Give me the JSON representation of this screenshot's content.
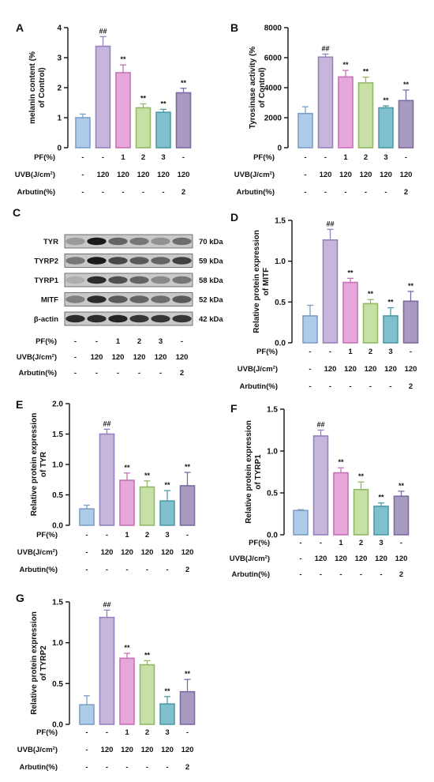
{
  "conditions": {
    "pf": [
      "-",
      "-",
      "1",
      "2",
      "3",
      "-"
    ],
    "uvb": [
      "-",
      "120",
      "120",
      "120",
      "120",
      "120"
    ],
    "arbutin": [
      "-",
      "-",
      "-",
      "-",
      "-",
      "2"
    ]
  },
  "row_labels": {
    "pf": "PF(%)",
    "uvb": "UVB(J/cm²)",
    "arbutin": "Arbutin(%)"
  },
  "bar_colors": [
    "#aecbe8",
    "#c6b6dc",
    "#e6a8d8",
    "#c7e0a6",
    "#7fc0cc",
    "#a99ac2"
  ],
  "bar_stroke_colors": [
    "#7c9fc6",
    "#9583bd",
    "#c673b8",
    "#93b86a",
    "#4f9aa8",
    "#7c6ba0"
  ],
  "western_blot": {
    "letter": "C",
    "bands": [
      {
        "protein": "TYR",
        "size": "70 kDa"
      },
      {
        "protein": "TYRP2",
        "size": "59 kDa"
      },
      {
        "protein": "TYRP1",
        "size": "58 kDa"
      },
      {
        "protein": "MITF",
        "size": "52 kDa"
      },
      {
        "protein": "β-actin",
        "size": "42 kDa"
      }
    ]
  },
  "chart_data": [
    {
      "letter": "A",
      "type": "bar",
      "ylabel": [
        "melanin content (%",
        "of Control)"
      ],
      "ylim": [
        0,
        4
      ],
      "yticks": [
        0,
        1,
        2,
        3,
        4
      ],
      "values": [
        1.0,
        3.38,
        2.5,
        1.33,
        1.18,
        1.83
      ],
      "errors": [
        0.12,
        0.32,
        0.26,
        0.13,
        0.1,
        0.15
      ],
      "annotations": [
        "",
        "##",
        "**",
        "**",
        "**",
        "**"
      ]
    },
    {
      "letter": "B",
      "type": "bar",
      "ylabel": [
        "Tyrosinase activity (%",
        "of Control)"
      ],
      "ylim": [
        0,
        8000
      ],
      "yticks": [
        0,
        2000,
        4000,
        6000,
        8000
      ],
      "values": [
        2280,
        6040,
        4720,
        4320,
        2660,
        3140
      ],
      "errors": [
        450,
        200,
        430,
        380,
        130,
        700
      ],
      "annotations": [
        "",
        "##",
        "**",
        "**",
        "**",
        "**"
      ]
    },
    {
      "letter": "D",
      "type": "bar",
      "ylabel": [
        "Relative protein expression",
        "of MITF"
      ],
      "ylim": [
        0,
        1.5
      ],
      "yticks": [
        "0.0",
        "0.5",
        "1.0",
        "1.5"
      ],
      "values": [
        0.33,
        1.26,
        0.74,
        0.48,
        0.33,
        0.51
      ],
      "errors": [
        0.13,
        0.13,
        0.05,
        0.05,
        0.1,
        0.12
      ],
      "annotations": [
        "",
        "##",
        "**",
        "**",
        "**",
        "**"
      ]
    },
    {
      "letter": "E",
      "type": "bar",
      "ylabel": [
        "Relative protein expression",
        "of TYR"
      ],
      "ylim": [
        0,
        2.0
      ],
      "yticks": [
        "0.0",
        "0.5",
        "1.0",
        "1.5",
        "2.0"
      ],
      "values": [
        0.27,
        1.5,
        0.74,
        0.63,
        0.4,
        0.65
      ],
      "errors": [
        0.06,
        0.08,
        0.12,
        0.1,
        0.17,
        0.22
      ],
      "annotations": [
        "",
        "##",
        "**",
        "**",
        "**",
        "**"
      ]
    },
    {
      "letter": "F",
      "type": "bar",
      "ylabel": [
        "Relative protein expression",
        "of TYRP1"
      ],
      "ylim": [
        0,
        1.5
      ],
      "yticks": [
        "0.0",
        "0.5",
        "1.0",
        "1.5"
      ],
      "values": [
        0.29,
        1.18,
        0.74,
        0.54,
        0.34,
        0.46
      ],
      "errors": [
        0.01,
        0.07,
        0.06,
        0.09,
        0.04,
        0.06
      ],
      "annotations": [
        "",
        "##",
        "**",
        "**",
        "**",
        "**"
      ]
    },
    {
      "letter": "G",
      "type": "bar",
      "ylabel": [
        "Relative protein expression",
        "of TYRP2"
      ],
      "ylim": [
        0,
        1.5
      ],
      "yticks": [
        "0.0",
        "0.5",
        "1.0",
        "1.5"
      ],
      "values": [
        0.24,
        1.31,
        0.81,
        0.73,
        0.25,
        0.4
      ],
      "errors": [
        0.11,
        0.09,
        0.06,
        0.05,
        0.09,
        0.15
      ],
      "annotations": [
        "",
        "##",
        "**",
        "**",
        "**",
        "**"
      ]
    }
  ]
}
